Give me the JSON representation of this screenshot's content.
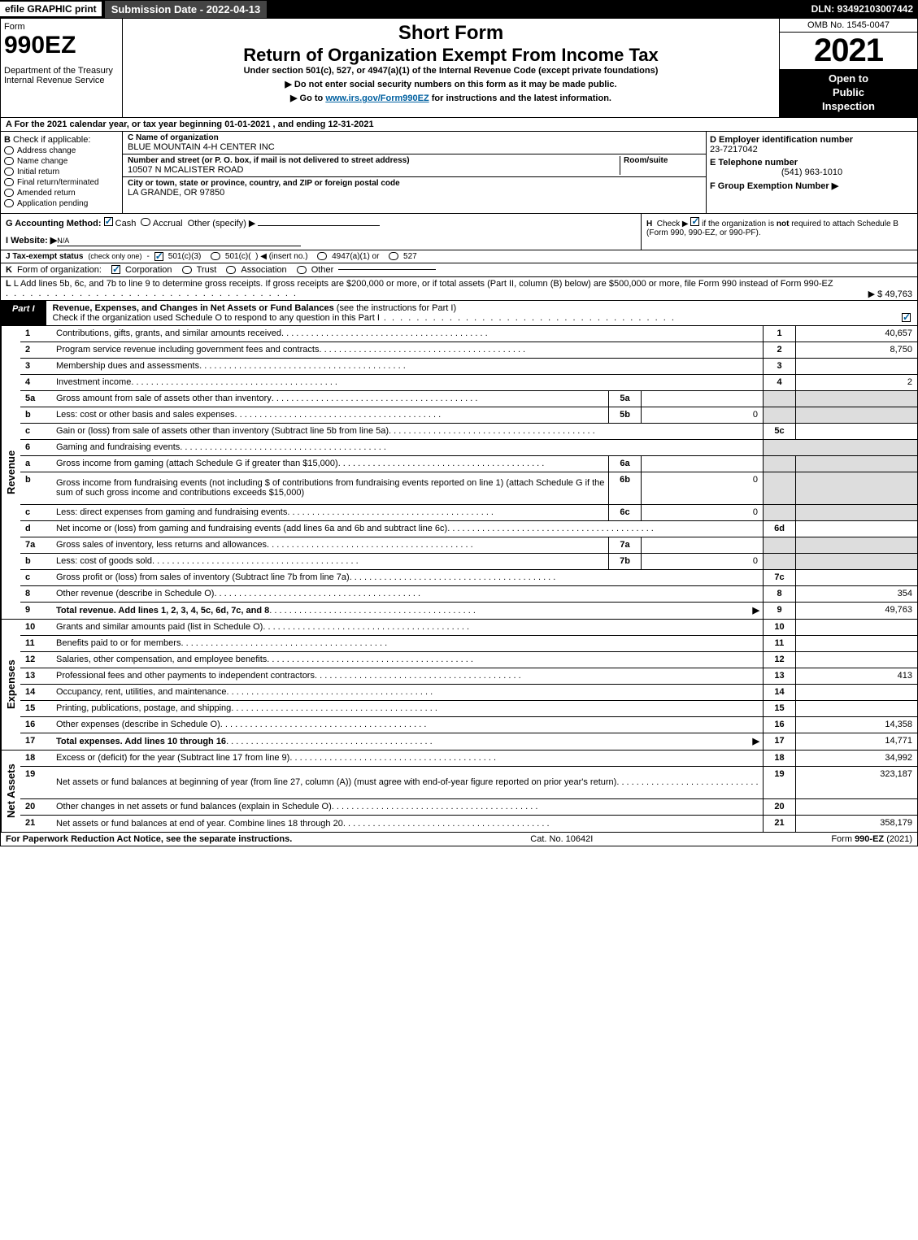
{
  "topbar": {
    "efile": "efile GRAPHIC print",
    "submission": "Submission Date - 2022-04-13",
    "dln": "DLN: 93492103007442"
  },
  "header": {
    "form_word": "Form",
    "form_number": "990EZ",
    "dept1": "Department of the Treasury",
    "dept2": "Internal Revenue Service",
    "short_form": "Short Form",
    "return_title": "Return of Organization Exempt From Income Tax",
    "subtitle": "Under section 501(c), 527, or 4947(a)(1) of the Internal Revenue Code (except private foundations)",
    "arrow1": "▶ Do not enter social security numbers on this form as it may be made public.",
    "arrow2_pre": "▶ Go to ",
    "arrow2_link": "www.irs.gov/Form990EZ",
    "arrow2_post": " for instructions and the latest information.",
    "omb": "OMB No. 1545-0047",
    "year": "2021",
    "open1": "Open to",
    "open2": "Public",
    "open3": "Inspection"
  },
  "row_a": "A  For the 2021 calendar year, or tax year beginning 01-01-2021 , and ending 12-31-2021",
  "section_b": {
    "title": "B",
    "check_label": "Check if applicable:",
    "items": [
      "Address change",
      "Name change",
      "Initial return",
      "Final return/terminated",
      "Amended return",
      "Application pending"
    ]
  },
  "section_c": {
    "name_label": "C Name of organization",
    "name": "BLUE MOUNTAIN 4-H CENTER INC",
    "addr_label": "Number and street (or P. O. box, if mail is not delivered to street address)",
    "room_label": "Room/suite",
    "addr": "10507 N MCALISTER ROAD",
    "city_label": "City or town, state or province, country, and ZIP or foreign postal code",
    "city": "LA GRANDE, OR  97850"
  },
  "section_def": {
    "d_label": "D Employer identification number",
    "d_value": "23-7217042",
    "e_label": "E Telephone number",
    "e_value": "(541) 963-1010",
    "f_label": "F Group Exemption Number   ▶"
  },
  "row_g": "G Accounting Method:",
  "g_cash": "Cash",
  "g_accrual": "Accrual",
  "g_other": "Other (specify) ▶",
  "row_h": "H  Check ▶    if the organization is not required to attach Schedule B (Form 990, 990-EZ, or 990-PF).",
  "row_i_label": "I Website: ▶",
  "row_i_value": "N/A",
  "row_j": "J Tax-exempt status (check only one) -   501(c)(3)   501(c)(  ) ◀ (insert no.)   4947(a)(1) or   527",
  "row_k": "K Form of organization:    Corporation    Trust    Association    Other",
  "row_l_text": "L Add lines 5b, 6c, and 7b to line 9 to determine gross receipts. If gross receipts are $200,000 or more, or if total assets (Part II, column (B) below) are $500,000 or more, file Form 990 instead of Form 990-EZ",
  "row_l_amount": "▶ $ 49,763",
  "part1": {
    "tab": "Part I",
    "title_bold": "Revenue, Expenses, and Changes in Net Assets or Fund Balances",
    "title_rest": " (see the instructions for Part I)",
    "check_line": "Check if the organization used Schedule O to respond to any question in this Part I"
  },
  "side_labels": {
    "revenue": "Revenue",
    "expenses": "Expenses",
    "net_assets": "Net Assets"
  },
  "revenue_lines": [
    {
      "num": "1",
      "desc": "Contributions, gifts, grants, and similar amounts received",
      "rnum": "1",
      "rval": "40,657"
    },
    {
      "num": "2",
      "desc": "Program service revenue including government fees and contracts",
      "rnum": "2",
      "rval": "8,750"
    },
    {
      "num": "3",
      "desc": "Membership dues and assessments",
      "rnum": "3",
      "rval": ""
    },
    {
      "num": "4",
      "desc": "Investment income",
      "rnum": "4",
      "rval": "2"
    },
    {
      "num": "5a",
      "desc": "Gross amount from sale of assets other than inventory",
      "inum": "5a",
      "ival": "",
      "shaded": true
    },
    {
      "num": "b",
      "desc": "Less: cost or other basis and sales expenses",
      "inum": "5b",
      "ival": "0",
      "shaded": true
    },
    {
      "num": "c",
      "desc": "Gain or (loss) from sale of assets other than inventory (Subtract line 5b from line 5a)",
      "rnum": "5c",
      "rval": ""
    },
    {
      "num": "6",
      "desc": "Gaming and fundraising events",
      "shaded": true,
      "noright": true
    },
    {
      "num": "a",
      "desc": "Gross income from gaming (attach Schedule G if greater than $15,000)",
      "inum": "6a",
      "ival": "",
      "shaded": true
    },
    {
      "num": "b",
      "desc": "Gross income from fundraising events (not including $                     of contributions from fundraising events reported on line 1) (attach Schedule G if the sum of such gross income and contributions exceeds $15,000)",
      "inum": "6b",
      "ival": "0",
      "shaded": true,
      "tall": true
    },
    {
      "num": "c",
      "desc": "Less: direct expenses from gaming and fundraising events",
      "inum": "6c",
      "ival": "0",
      "shaded": true
    },
    {
      "num": "d",
      "desc": "Net income or (loss) from gaming and fundraising events (add lines 6a and 6b and subtract line 6c)",
      "rnum": "6d",
      "rval": ""
    },
    {
      "num": "7a",
      "desc": "Gross sales of inventory, less returns and allowances",
      "inum": "7a",
      "ival": "",
      "shaded": true
    },
    {
      "num": "b",
      "desc": "Less: cost of goods sold",
      "inum": "7b",
      "ival": "0",
      "shaded": true
    },
    {
      "num": "c",
      "desc": "Gross profit or (loss) from sales of inventory (Subtract line 7b from line 7a)",
      "rnum": "7c",
      "rval": ""
    },
    {
      "num": "8",
      "desc": "Other revenue (describe in Schedule O)",
      "rnum": "8",
      "rval": "354"
    },
    {
      "num": "9",
      "desc": "Total revenue. Add lines 1, 2, 3, 4, 5c, 6d, 7c, and 8",
      "rnum": "9",
      "rval": "49,763",
      "bold": true,
      "arrow": true
    }
  ],
  "expense_lines": [
    {
      "num": "10",
      "desc": "Grants and similar amounts paid (list in Schedule O)",
      "rnum": "10",
      "rval": ""
    },
    {
      "num": "11",
      "desc": "Benefits paid to or for members",
      "rnum": "11",
      "rval": ""
    },
    {
      "num": "12",
      "desc": "Salaries, other compensation, and employee benefits",
      "rnum": "12",
      "rval": ""
    },
    {
      "num": "13",
      "desc": "Professional fees and other payments to independent contractors",
      "rnum": "13",
      "rval": "413"
    },
    {
      "num": "14",
      "desc": "Occupancy, rent, utilities, and maintenance",
      "rnum": "14",
      "rval": ""
    },
    {
      "num": "15",
      "desc": "Printing, publications, postage, and shipping",
      "rnum": "15",
      "rval": ""
    },
    {
      "num": "16",
      "desc": "Other expenses (describe in Schedule O)",
      "rnum": "16",
      "rval": "14,358"
    },
    {
      "num": "17",
      "desc": "Total expenses. Add lines 10 through 16",
      "rnum": "17",
      "rval": "14,771",
      "bold": true,
      "arrow": true
    }
  ],
  "net_lines": [
    {
      "num": "18",
      "desc": "Excess or (deficit) for the year (Subtract line 17 from line 9)",
      "rnum": "18",
      "rval": "34,992"
    },
    {
      "num": "19",
      "desc": "Net assets or fund balances at beginning of year (from line 27, column (A)) (must agree with end-of-year figure reported on prior year's return)",
      "rnum": "19",
      "rval": "323,187",
      "tall": true
    },
    {
      "num": "20",
      "desc": "Other changes in net assets or fund balances (explain in Schedule O)",
      "rnum": "20",
      "rval": ""
    },
    {
      "num": "21",
      "desc": "Net assets or fund balances at end of year. Combine lines 18 through 20",
      "rnum": "21",
      "rval": "358,179"
    }
  ],
  "footer": {
    "left": "For Paperwork Reduction Act Notice, see the separate instructions.",
    "center": "Cat. No. 10642I",
    "right_pre": "Form ",
    "right_bold": "990-EZ",
    "right_post": " (2021)"
  }
}
